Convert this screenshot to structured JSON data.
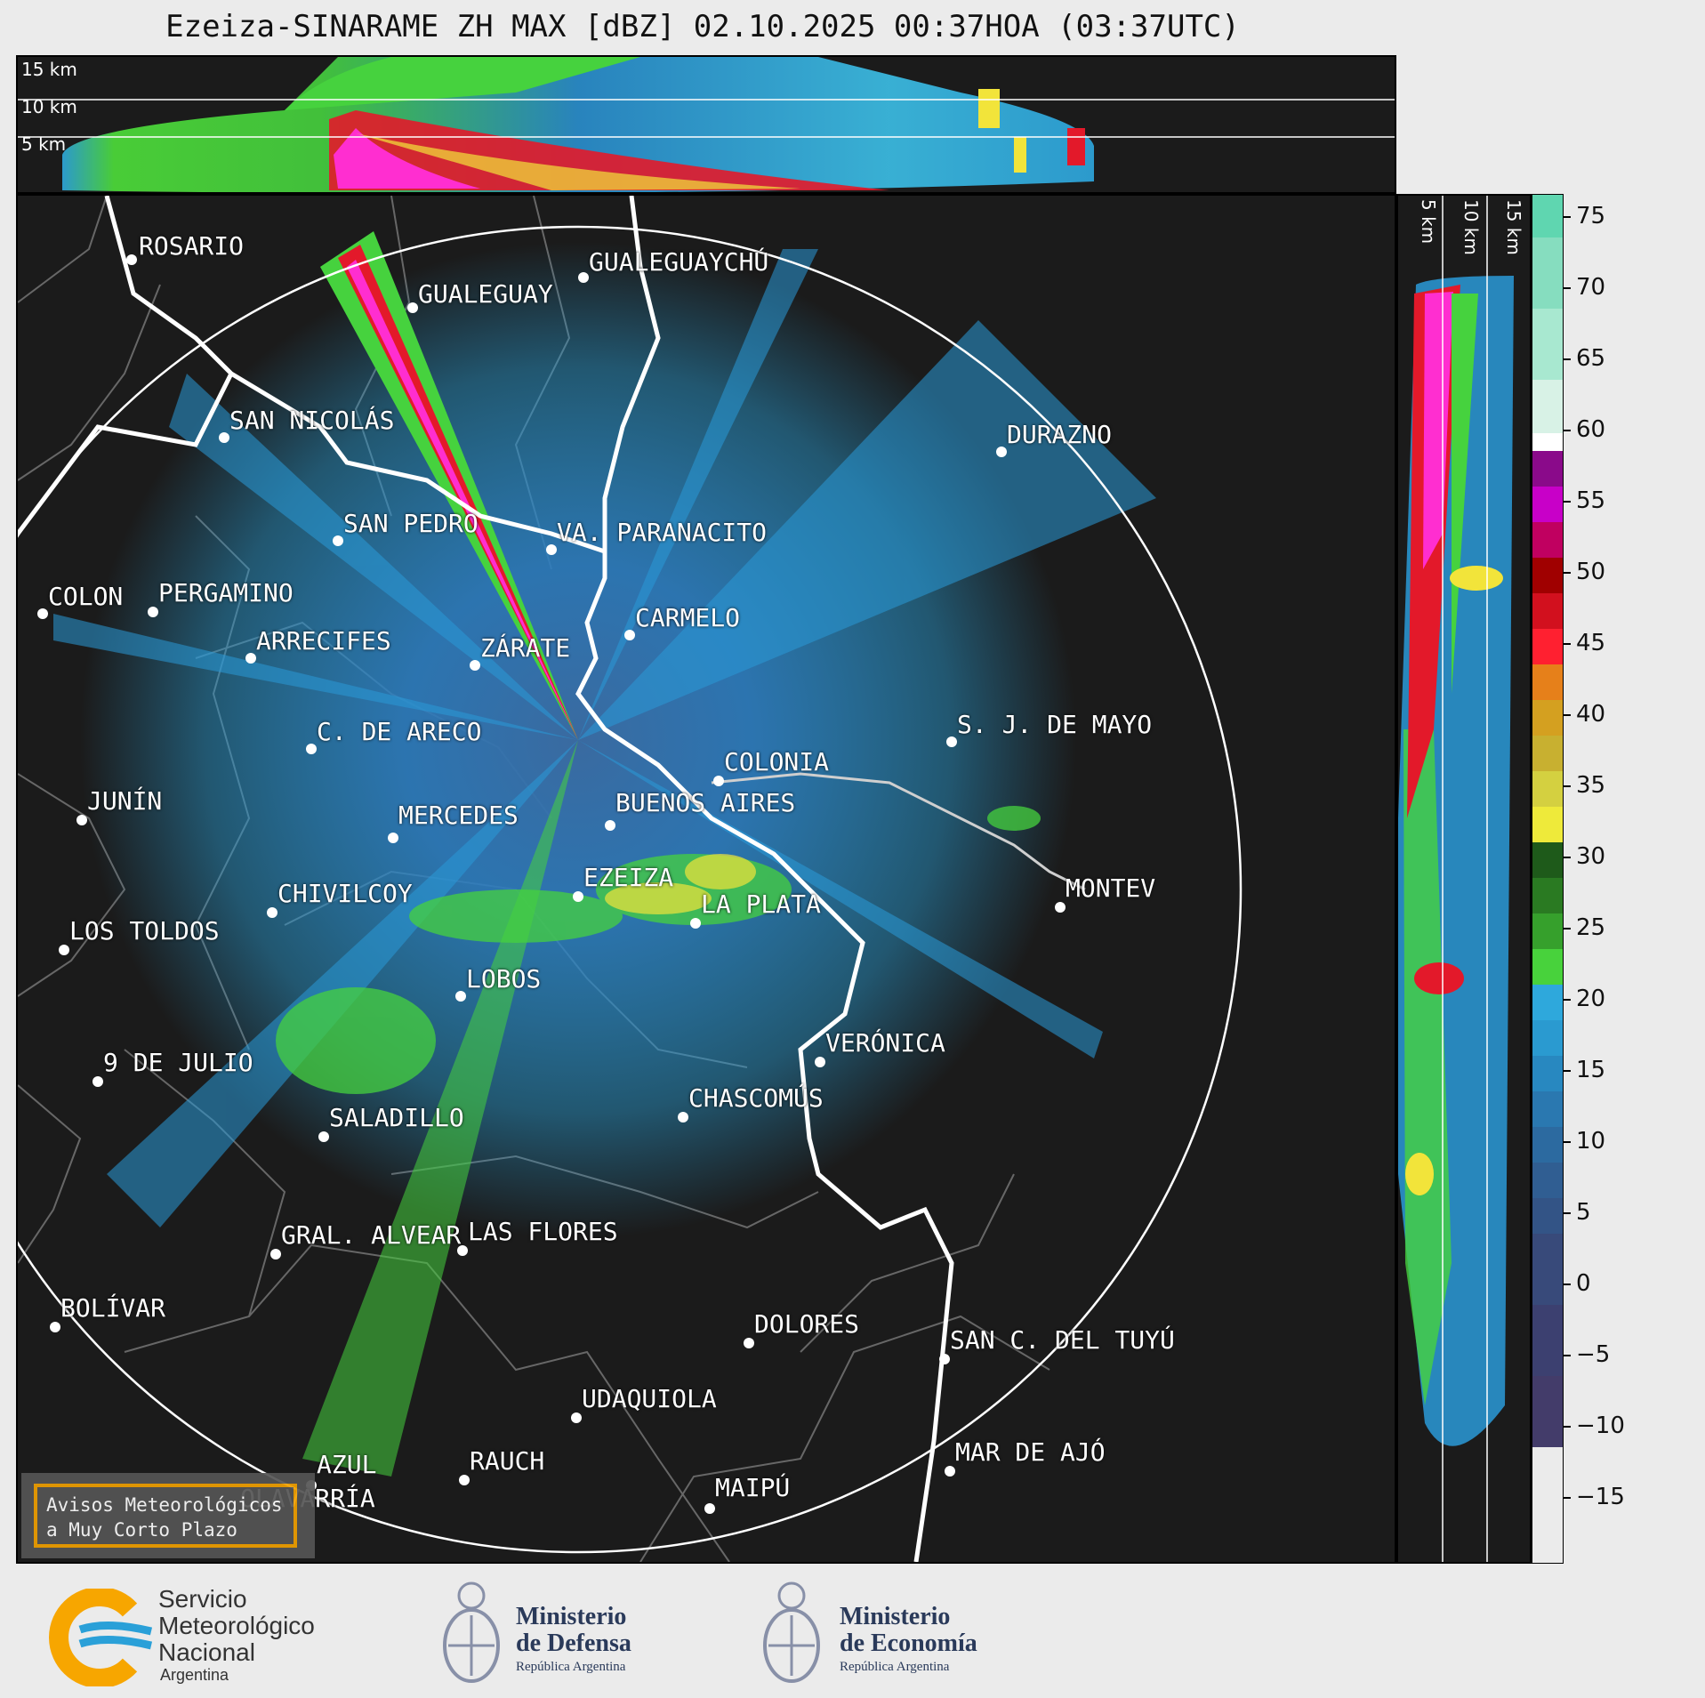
{
  "title": "Ezeiza-SINARAME ZH MAX [dBZ] 02.10.2025 00:37HOA (03:37UTC)",
  "height_labels": [
    "15 km",
    "10 km",
    "5 km"
  ],
  "side_labels": [
    "5 km",
    "10 km",
    "15 km"
  ],
  "colorbar": {
    "ticks": [
      "75",
      "70",
      "65",
      "60",
      "55",
      "50",
      "45",
      "40",
      "35",
      "30",
      "25",
      "20",
      "15",
      "10",
      "5",
      "0",
      "−5",
      "−10",
      "−15"
    ]
  },
  "cities": [
    {
      "name": "ROSARIO"
    },
    {
      "name": "GUALEGUAYCHÚ"
    },
    {
      "name": "GUALEGUAY"
    },
    {
      "name": "SAN NICOLÁS"
    },
    {
      "name": "DURAZNO"
    },
    {
      "name": "SAN PEDRO"
    },
    {
      "name": "VA. PARANACITO"
    },
    {
      "name": "COLON"
    },
    {
      "name": "PERGAMINO"
    },
    {
      "name": "CARMELO"
    },
    {
      "name": "ARRECIFES"
    },
    {
      "name": "ZÁRATE"
    },
    {
      "name": "S. J. DE MAYO"
    },
    {
      "name": "C. DE ARECO"
    },
    {
      "name": "COLONIA"
    },
    {
      "name": "JUNÍN"
    },
    {
      "name": "BUENOS AIRES"
    },
    {
      "name": "MERCEDES"
    },
    {
      "name": "EZEIZA"
    },
    {
      "name": "MONTEV"
    },
    {
      "name": "CHIVILCOY"
    },
    {
      "name": "LA PLATA"
    },
    {
      "name": "LOS TOLDOS"
    },
    {
      "name": "LOBOS"
    },
    {
      "name": "VERÓNICA"
    },
    {
      "name": "9 DE JULIO"
    },
    {
      "name": "CHASCOMÚS"
    },
    {
      "name": "SALADILLO"
    },
    {
      "name": "GRAL. ALVEAR"
    },
    {
      "name": "LAS FLORES"
    },
    {
      "name": "BOLÍVAR"
    },
    {
      "name": "DOLORES"
    },
    {
      "name": "SAN C. DEL TUYÚ"
    },
    {
      "name": "UDAQUIOLA"
    },
    {
      "name": "MAR DE AJÓ"
    },
    {
      "name": "RAUCH"
    },
    {
      "name": "AZUL"
    },
    {
      "name": "OLAVARRÍA"
    },
    {
      "name": "MAIPÚ"
    }
  ],
  "avisos": {
    "line1": "Avisos Meteorológicos",
    "line2": "a Muy Corto Plazo"
  },
  "footer": {
    "smn": {
      "l1": "Servicio",
      "l2": "Meteorológico",
      "l3": "Nacional",
      "l4": "Argentina"
    },
    "defensa": {
      "l1": "Ministerio",
      "l2": "de Defensa",
      "l3": "República Argentina"
    },
    "economia": {
      "l1": "Ministerio",
      "l2": "de Economía",
      "l3": "República Argentina"
    }
  }
}
